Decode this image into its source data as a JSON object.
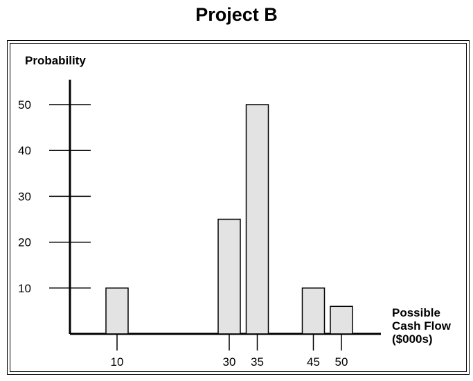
{
  "chart_data": {
    "type": "bar",
    "title": "Project B",
    "ylabel": "Probability",
    "xlabel_lines": [
      "Possible",
      "Cash Flow",
      "($000s)"
    ],
    "categories": [
      10,
      30,
      35,
      45,
      50
    ],
    "values": [
      10,
      25,
      50,
      10,
      6
    ],
    "y_ticks": [
      10,
      20,
      30,
      40,
      50
    ],
    "x_ticks": [
      10,
      30,
      35,
      45,
      50
    ],
    "ylim": [
      0,
      55
    ],
    "grid": false,
    "bar_color": "#e3e3e3",
    "axis_color": "#000000"
  }
}
